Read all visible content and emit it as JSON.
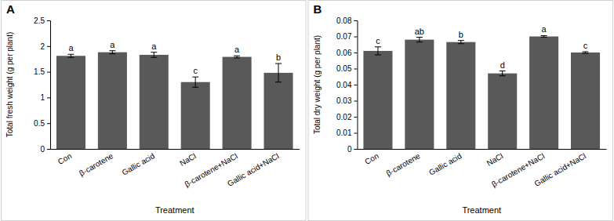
{
  "chart_data": [
    {
      "type": "bar",
      "title": "A",
      "x_label": "Treatment",
      "y_label": "Total fresh weight (g per plant)",
      "categories": [
        "Con",
        "β-carotene",
        "Gallic acid",
        "NaCl",
        "β-carotene+NaCl",
        "Gallic acid+NaCl"
      ],
      "values": [
        1.81,
        1.88,
        1.83,
        1.3,
        1.79,
        1.48
      ],
      "errors": [
        0.03,
        0.03,
        0.05,
        0.1,
        0.02,
        0.18
      ],
      "annotations": [
        "a",
        "a",
        "a",
        "c",
        "a",
        "b"
      ],
      "color": "#595959",
      "ylim": [
        0,
        2.5
      ],
      "yticks": [
        0,
        0.5,
        1,
        1.5,
        2,
        2.5
      ],
      "grid": false
    },
    {
      "type": "bar",
      "title": "B",
      "x_label": "Treatment",
      "y_label": "Total dry weight (g per plant)",
      "categories": [
        "Con",
        "β-carotene",
        "Gallic acid",
        "NaCl",
        "β-carotene+NaCl",
        "Gallic acid+NaCl"
      ],
      "values": [
        0.061,
        0.068,
        0.0665,
        0.047,
        0.07,
        0.06
      ],
      "errors": [
        0.0025,
        0.0015,
        0.001,
        0.0015,
        0.0005,
        0.0005
      ],
      "annotations": [
        "c",
        "ab",
        "b",
        "d",
        "a",
        "c"
      ],
      "color": "#595959",
      "ylim": [
        0,
        0.08
      ],
      "yticks": [
        0,
        0.01,
        0.02,
        0.03,
        0.04,
        0.05,
        0.06,
        0.07,
        0.08
      ],
      "grid": false
    }
  ]
}
